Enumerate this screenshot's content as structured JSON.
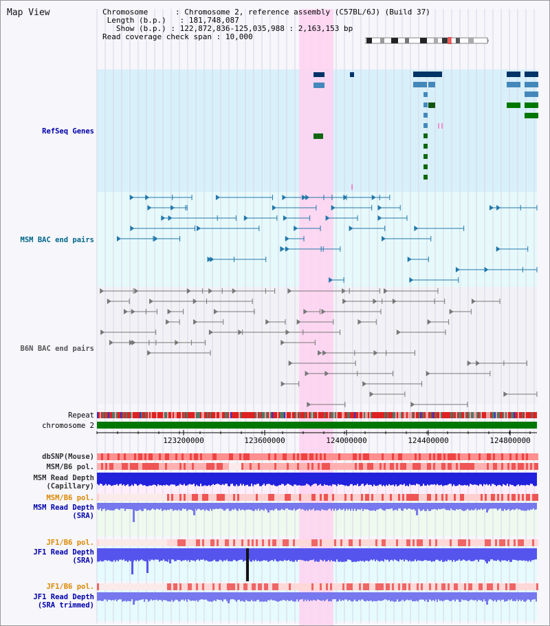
{
  "view_title": "Map View",
  "info": {
    "chromosome_key": "Chromosome",
    "chromosome_val": "Chromosome 2, reference assembly (C57BL/6J) (Build 37)",
    "length_key": "Length (b.p.)",
    "length_val": "181,748,087",
    "show_key": "Show (b.p.)",
    "show_val": "122,872,836-125,035,988 : 2,163,153 bp",
    "span_key": "Read coverage check span",
    "span_val": "10,000"
  },
  "tracks": {
    "refseq": "RefSeq Genes",
    "msm_bac": "MSM BAC end pairs",
    "b6n_bac": "B6N BAC end pairs",
    "repeat": "Repeat",
    "chromosome": "chromosome 2",
    "dbsnp": "dbSNP(Mouse)",
    "msm_b6_pol_1": "MSM/B6 pol.",
    "msm_depth_cap": "MSM Read Depth\n(Capillary)",
    "msm_b6_pol_2": "MSM/B6 pol.",
    "msm_depth_sra": "MSM Read Depth\n(SRA)",
    "jf1_b6_pol_1": "JF1/B6 pol.",
    "jf1_depth_sra": "JF1 Read Depth\n(SRA)",
    "jf1_b6_pol_2": "JF1/B6 pol.",
    "jf1_depth_trim": "JF1 Read Depth\n(SRA trimmed)"
  },
  "ruler": [
    "123200000",
    "123600000",
    "124000000",
    "124400000",
    "124800000"
  ],
  "colors": {
    "refseq_label": "#0000aa",
    "msm_bac_label": "#006688",
    "b6n_bac_label": "#555555",
    "pol_label_msm_b6": "#333333",
    "pol_label_orange": "#dd8800",
    "depth_label": "#0000aa",
    "highlight": "#ffd2f0"
  }
}
